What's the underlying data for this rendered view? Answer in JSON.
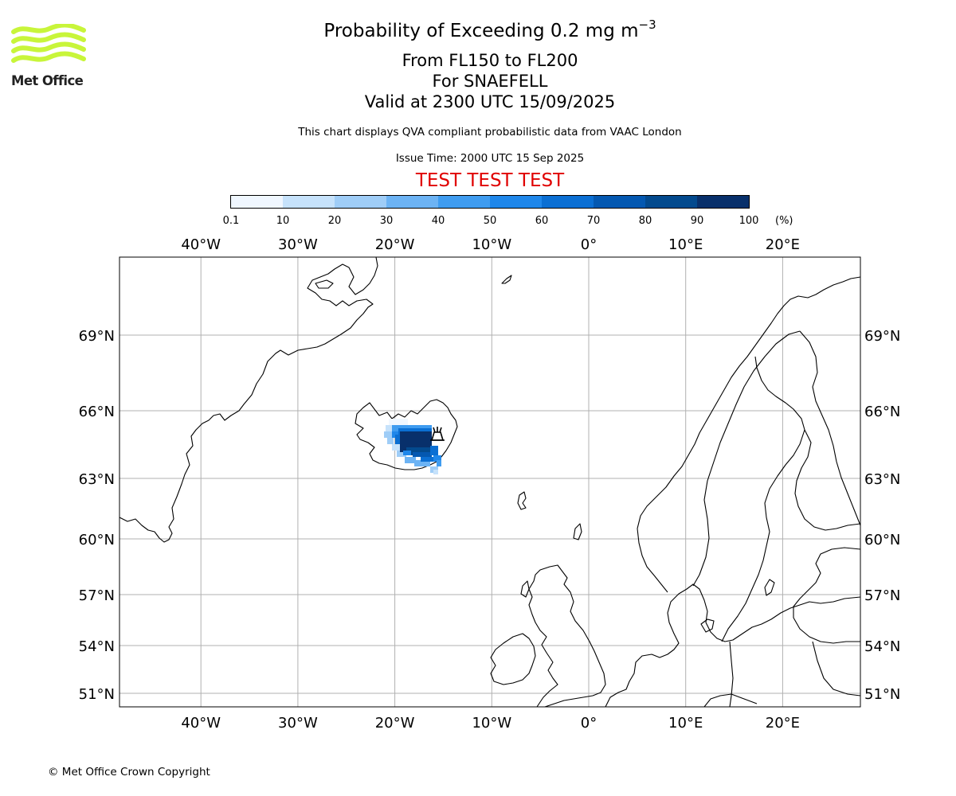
{
  "header": {
    "title_main": "Probability of Exceeding 0.2 mg m",
    "title_superscript": "−3",
    "level_range": "From FL150 to FL200",
    "volcano_line": "For SNAEFELL",
    "valid_line": "Valid at 2300 UTC 15/09/2025",
    "note": "This chart displays QVA compliant probabilistic data from VAAC London",
    "issue_time": "Issue Time: 2000 UTC 15 Sep 2025",
    "test_banner": "TEST TEST TEST",
    "test_color": "#e00000"
  },
  "logo": {
    "text": "Met Office",
    "icon": "met-office-waves-logo",
    "wave_color": "#c8f53a"
  },
  "colorbar": {
    "unit": "(%)",
    "ticks": [
      "0.1",
      "10",
      "20",
      "30",
      "40",
      "50",
      "60",
      "70",
      "80",
      "90",
      "100"
    ],
    "colors": [
      "#f0f7ff",
      "#c6e2fb",
      "#9fcdf7",
      "#6cb3f4",
      "#3f9cf0",
      "#1f87ea",
      "#0b6fd3",
      "#0458b1",
      "#034a8e",
      "#08306b"
    ]
  },
  "map": {
    "longitude_labels": [
      "40°W",
      "30°W",
      "20°W",
      "10°W",
      "0°",
      "10°E",
      "20°E"
    ],
    "longitude_values": [
      -40,
      -30,
      -20,
      -10,
      0,
      10,
      20
    ],
    "latitude_labels": [
      "69°N",
      "66°N",
      "63°N",
      "60°N",
      "57°N",
      "54°N",
      "51°N"
    ],
    "latitude_values": [
      69,
      66,
      63,
      60,
      57,
      54,
      51
    ],
    "grid": true,
    "gridline_color": "#b0b0b0",
    "volcano_marker": "volcano-icon",
    "volcano_name": "SNAEFELL"
  },
  "footer": {
    "copyright": "© Met Office Crown Copyright"
  }
}
